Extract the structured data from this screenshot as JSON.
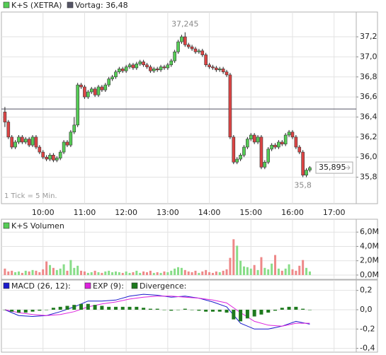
{
  "chart_data": [
    {
      "type": "candlestick",
      "legend": "K+S (XETRA)",
      "color": "#55cc55",
      "down_color": "#dd4444",
      "reference": {
        "value": 36.48,
        "label": "Vortag: 36,48"
      },
      "reference_color": "#555566",
      "note": "1 Tick = 5 Min.",
      "high_label": {
        "value": 37.245,
        "label": "37,245"
      },
      "low_label": {
        "value": 35.8,
        "label": "35,8"
      },
      "last_label": {
        "value": 35.895,
        "label": "35,895"
      },
      "xlim": [
        541,
        1052
      ],
      "ylim": [
        35.55,
        37.44
      ],
      "xticks": [
        {
          "value": 600,
          "label": "10:00"
        },
        {
          "value": 660,
          "label": "11:00"
        },
        {
          "value": 720,
          "label": "12:00"
        },
        {
          "value": 780,
          "label": "13:00"
        },
        {
          "value": 840,
          "label": "14:00"
        },
        {
          "value": 900,
          "label": "15:00"
        },
        {
          "value": 960,
          "label": "16:00"
        },
        {
          "value": 1020,
          "label": "17:00"
        }
      ],
      "yticks": [
        {
          "value": 35.8,
          "label": "35,8"
        },
        {
          "value": 36.0,
          "label": "36,0"
        },
        {
          "value": 36.2,
          "label": "36,2"
        },
        {
          "value": 36.4,
          "label": "36,4"
        },
        {
          "value": 36.6,
          "label": "36,6"
        },
        {
          "value": 36.8,
          "label": "36,8"
        },
        {
          "value": 37.0,
          "label": "37,0"
        },
        {
          "value": 37.2,
          "label": "37,2"
        }
      ],
      "grid": true,
      "x": [
        545,
        550,
        555,
        560,
        565,
        570,
        575,
        580,
        585,
        590,
        595,
        600,
        605,
        610,
        615,
        620,
        625,
        630,
        635,
        640,
        645,
        650,
        655,
        660,
        665,
        670,
        675,
        680,
        685,
        690,
        695,
        700,
        705,
        710,
        715,
        720,
        725,
        730,
        735,
        740,
        745,
        750,
        755,
        760,
        765,
        770,
        775,
        780,
        785,
        790,
        795,
        800,
        805,
        810,
        815,
        820,
        825,
        830,
        835,
        840,
        845,
        850,
        855,
        860,
        865,
        870,
        875,
        880,
        885,
        890,
        895,
        900,
        905,
        910,
        915,
        920,
        925,
        930,
        935,
        940,
        945,
        950,
        955,
        960,
        965,
        970,
        975,
        980,
        985
      ],
      "ohlc": [
        [
          36.45,
          36.5,
          36.3,
          36.35
        ],
        [
          36.35,
          36.37,
          36.18,
          36.2
        ],
        [
          36.2,
          36.22,
          36.08,
          36.1
        ],
        [
          36.1,
          36.17,
          36.08,
          36.15
        ],
        [
          36.15,
          36.22,
          36.13,
          36.2
        ],
        [
          36.2,
          36.22,
          36.13,
          36.15
        ],
        [
          36.15,
          36.2,
          36.13,
          36.18
        ],
        [
          36.18,
          36.2,
          36.1,
          36.12
        ],
        [
          36.12,
          36.22,
          36.1,
          36.2
        ],
        [
          36.2,
          36.22,
          36.08,
          36.1
        ],
        [
          36.1,
          36.12,
          36.03,
          36.05
        ],
        [
          36.05,
          36.07,
          35.98,
          36
        ],
        [
          36,
          36.02,
          35.96,
          35.98
        ],
        [
          35.98,
          36.04,
          35.96,
          36.02
        ],
        [
          36.02,
          36.04,
          35.95,
          35.97
        ],
        [
          35.97,
          36.01,
          35.95,
          35.99
        ],
        [
          35.99,
          36.07,
          35.97,
          36.05
        ],
        [
          36.05,
          36.17,
          36.03,
          36.15
        ],
        [
          36.15,
          36.17,
          36.1,
          36.12
        ],
        [
          36.12,
          36.27,
          36.1,
          36.25
        ],
        [
          36.25,
          36.4,
          36.23,
          36.32
        ],
        [
          36.32,
          36.74,
          36.3,
          36.72
        ],
        [
          36.72,
          36.74,
          36.68,
          36.7
        ],
        [
          36.7,
          36.72,
          36.58,
          36.6
        ],
        [
          36.6,
          36.67,
          36.58,
          36.65
        ],
        [
          36.65,
          36.7,
          36.63,
          36.68
        ],
        [
          36.68,
          36.7,
          36.6,
          36.62
        ],
        [
          36.62,
          36.72,
          36.6,
          36.7
        ],
        [
          36.7,
          36.72,
          36.65,
          36.67
        ],
        [
          36.67,
          36.74,
          36.65,
          36.72
        ],
        [
          36.72,
          36.8,
          36.7,
          36.78
        ],
        [
          36.78,
          36.82,
          36.76,
          36.8
        ],
        [
          36.8,
          36.87,
          36.78,
          36.85
        ],
        [
          36.85,
          36.9,
          36.83,
          36.88
        ],
        [
          36.88,
          36.9,
          36.84,
          36.86
        ],
        [
          36.86,
          36.92,
          36.84,
          36.9
        ],
        [
          36.9,
          36.94,
          36.88,
          36.92
        ],
        [
          36.92,
          36.94,
          36.87,
          36.89
        ],
        [
          36.89,
          36.95,
          36.87,
          36.93
        ],
        [
          36.93,
          36.97,
          36.91,
          36.95
        ],
        [
          36.95,
          36.97,
          36.9,
          36.92
        ],
        [
          36.92,
          36.94,
          36.88,
          36.9
        ],
        [
          36.9,
          36.92,
          36.84,
          36.86
        ],
        [
          36.86,
          36.9,
          36.84,
          36.88
        ],
        [
          36.88,
          36.9,
          36.85,
          36.87
        ],
        [
          36.87,
          36.92,
          36.85,
          36.9
        ],
        [
          36.9,
          36.92,
          36.87,
          36.89
        ],
        [
          36.89,
          36.94,
          36.87,
          36.92
        ],
        [
          36.92,
          36.98,
          36.9,
          36.96
        ],
        [
          36.96,
          37.07,
          36.94,
          37.05
        ],
        [
          37.05,
          37.17,
          37.03,
          37.15
        ],
        [
          37.15,
          37.22,
          37.13,
          37.2
        ],
        [
          37.2,
          37.245,
          37.1,
          37.12
        ],
        [
          37.12,
          37.14,
          37.08,
          37.1
        ],
        [
          37.1,
          37.12,
          37.06,
          37.08
        ],
        [
          37.08,
          37.1,
          37.03,
          37.05
        ],
        [
          37.05,
          37.08,
          37.03,
          37.06
        ],
        [
          37.06,
          37.08,
          37,
          37.02
        ],
        [
          37.02,
          37.04,
          36.9,
          36.92
        ],
        [
          36.92,
          36.94,
          36.88,
          36.9
        ],
        [
          36.9,
          36.92,
          36.87,
          36.89
        ],
        [
          36.89,
          36.91,
          36.85,
          36.87
        ],
        [
          36.87,
          36.9,
          36.85,
          36.88
        ],
        [
          36.88,
          36.9,
          36.83,
          36.85
        ],
        [
          36.85,
          36.87,
          36.8,
          36.82
        ],
        [
          36.82,
          36.84,
          36.18,
          36.2
        ],
        [
          36.2,
          36.22,
          35.93,
          35.95
        ],
        [
          35.95,
          36,
          35.93,
          35.98
        ],
        [
          35.98,
          36.04,
          35.96,
          36.02
        ],
        [
          36.02,
          36.12,
          36,
          36.1
        ],
        [
          36.1,
          36.2,
          36.08,
          36.18
        ],
        [
          36.18,
          36.24,
          36.16,
          36.22
        ],
        [
          36.22,
          36.24,
          36.13,
          36.15
        ],
        [
          36.15,
          36.22,
          36.13,
          36.2
        ],
        [
          36.2,
          36.22,
          35.88,
          35.9
        ],
        [
          35.9,
          35.97,
          35.88,
          35.95
        ],
        [
          35.95,
          36.1,
          35.93,
          36.08
        ],
        [
          36.08,
          36.14,
          36.06,
          36.12
        ],
        [
          36.12,
          36.14,
          36.08,
          36.1
        ],
        [
          36.1,
          36.17,
          36.08,
          36.15
        ],
        [
          36.15,
          36.17,
          36.11,
          36.13
        ],
        [
          36.13,
          36.24,
          36.11,
          36.22
        ],
        [
          36.22,
          36.27,
          36.2,
          36.25
        ],
        [
          36.25,
          36.27,
          36.18,
          36.2
        ],
        [
          36.2,
          36.22,
          36.08,
          36.1
        ],
        [
          36.1,
          36.12,
          36.03,
          36.05
        ],
        [
          36.05,
          36.07,
          35.8,
          35.82
        ],
        [
          35.82,
          35.89,
          35.8,
          35.87
        ],
        [
          35.87,
          35.91,
          35.85,
          35.895
        ]
      ]
    },
    {
      "type": "bar",
      "legend": "K+S Volumen",
      "color": "#55cc55",
      "up_color": "#88dd88",
      "down_color": "#ee8888",
      "xlim": [
        541,
        1052
      ],
      "ylim": [
        -0.4,
        7.6
      ],
      "yticks": [
        {
          "value": 0,
          "label": "0,0M"
        },
        {
          "value": 2,
          "label": "2,0M"
        },
        {
          "value": 4,
          "label": "4,0M"
        },
        {
          "value": 6,
          "label": "6,0M"
        }
      ],
      "values": [
        0.9,
        0.5,
        0.6,
        0.4,
        0.5,
        0.3,
        0.6,
        0.5,
        0.7,
        0.6,
        0.4,
        0.8,
        1.9,
        1.4,
        1.0,
        0.7,
        0.9,
        1.5,
        0.6,
        2.1,
        1.0,
        1.3,
        0.6,
        0.5,
        0.3,
        0.4,
        0.6,
        0.4,
        0.3,
        0.5,
        0.6,
        0.4,
        0.5,
        0.4,
        0.3,
        0.5,
        0.3,
        0.4,
        0.6,
        0.3,
        0.5,
        0.4,
        0.6,
        0.3,
        0.4,
        0.3,
        0.5,
        0.4,
        0.6,
        0.9,
        1.1,
        1.0,
        0.7,
        0.5,
        0.4,
        0.6,
        0.3,
        0.5,
        0.7,
        0.4,
        0.3,
        0.5,
        0.4,
        0.6,
        0.8,
        2.4,
        5.0,
        4.1,
        2.0,
        1.2,
        1.1,
        0.9,
        1.4,
        0.7,
        2.5,
        1.0,
        0.8,
        1.6,
        2.8,
        0.9,
        0.6,
        0.9,
        1.5,
        0.8,
        0.6,
        1.3,
        2.1,
        1.0,
        0.5
      ]
    },
    {
      "type": "line",
      "xlim": [
        541,
        1052
      ],
      "ylim": [
        -0.425,
        0.3
      ],
      "yticks": [
        {
          "value": 0.2,
          "label": "0,2"
        },
        {
          "value": 0,
          "label": "0,0"
        },
        {
          "value": -0.2,
          "label": "-0,2"
        },
        {
          "value": -0.4,
          "label": "-0,4"
        }
      ],
      "series": [
        {
          "name": "MACD (26, 12):",
          "color": "#1a1acc",
          "x": [
            545,
            565,
            585,
            605,
            625,
            645,
            665,
            685,
            705,
            725,
            745,
            765,
            785,
            805,
            825,
            845,
            865,
            885,
            905,
            925,
            945,
            965,
            985
          ],
          "values": [
            0,
            -0.06,
            -0.07,
            -0.06,
            -0.02,
            0.03,
            0.09,
            0.09,
            0.1,
            0.14,
            0.16,
            0.15,
            0.13,
            0.14,
            0.12,
            0.08,
            0.03,
            -0.14,
            -0.2,
            -0.2,
            -0.17,
            -0.12,
            -0.15
          ]
        },
        {
          "name": "EXP (9):",
          "color": "#dd22dd",
          "x": [
            545,
            565,
            585,
            605,
            625,
            645,
            665,
            685,
            705,
            725,
            745,
            765,
            785,
            805,
            825,
            845,
            865,
            885,
            905,
            925,
            945,
            965,
            985
          ],
          "values": [
            0,
            -0.03,
            -0.05,
            -0.06,
            -0.05,
            -0.02,
            0.03,
            0.06,
            0.08,
            0.11,
            0.13,
            0.14,
            0.14,
            0.13,
            0.12,
            0.1,
            0.07,
            -0.03,
            -0.12,
            -0.16,
            -0.17,
            -0.14,
            -0.14
          ]
        },
        {
          "name": "Divergence:",
          "type": "bar",
          "color": "#1e7a1e",
          "x": [
            545,
            555,
            565,
            575,
            585,
            595,
            605,
            615,
            625,
            635,
            645,
            655,
            665,
            675,
            685,
            695,
            705,
            715,
            725,
            735,
            745,
            755,
            765,
            775,
            785,
            795,
            805,
            815,
            825,
            835,
            845,
            855,
            865,
            875,
            885,
            895,
            905,
            915,
            925,
            935,
            945,
            955,
            965,
            975,
            985
          ],
          "values": [
            0,
            -0.02,
            -0.03,
            -0.03,
            -0.02,
            -0.01,
            0,
            0.02,
            0.03,
            0.04,
            0.05,
            0.06,
            0.06,
            0.05,
            0.04,
            0.03,
            0.03,
            0.03,
            0.03,
            0.03,
            0.02,
            0.01,
            0.01,
            0,
            -0.01,
            0,
            0.01,
            0,
            -0.01,
            -0.02,
            -0.02,
            -0.02,
            -0.03,
            -0.1,
            -0.12,
            -0.09,
            -0.07,
            -0.05,
            -0.03,
            -0.01,
            0.02,
            0.03,
            0.03,
            0.01,
            0
          ]
        }
      ]
    }
  ]
}
